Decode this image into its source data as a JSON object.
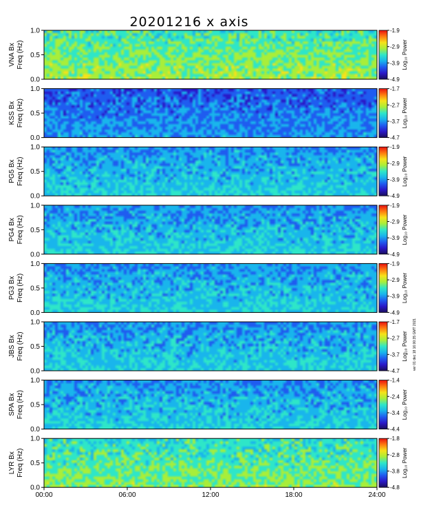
{
  "chart_data": {
    "type": "heatmap",
    "title": "20201216 x axis",
    "side_note": "ver 01 dec 18 16:00:35 GMT 2021",
    "x_ticks": [
      "00:00",
      "06:00",
      "12:00",
      "18:00",
      "24:00"
    ],
    "x_range_hours": [
      0,
      24
    ],
    "y_ticks": [
      "0.0",
      "0.5",
      "1.0"
    ],
    "y_range_hz": [
      0,
      1.0
    ],
    "colorbar_label": "Log₁₀ Power",
    "colormap": [
      "#1a0f5c",
      "#2a18c8",
      "#1f5cf0",
      "#19b5ec",
      "#2ee6c8",
      "#a8ee3a",
      "#f6e21a",
      "#ff7a10",
      "#e81010"
    ],
    "panels": [
      {
        "station": "VNA Bx",
        "ylabel_line1": "VNA Bx",
        "ylabel_line2": "Freq (Hz)",
        "cbar_ticks": [
          "-1.9",
          "-2.9",
          "-3.9",
          "-4.9"
        ],
        "cbar_range": [
          -4.9,
          -1.9
        ]
      },
      {
        "station": "KSS Bx",
        "ylabel_line1": "KSS Bx",
        "ylabel_line2": "Freq (Hz)",
        "cbar_ticks": [
          "-1.7",
          "-2.7",
          "-3.7",
          "-4.7"
        ],
        "cbar_range": [
          -4.7,
          -1.7
        ]
      },
      {
        "station": "PG5 Bx",
        "ylabel_line1": "PG5 Bx",
        "ylabel_line2": "Freq (Hz)",
        "cbar_ticks": [
          "-1.9",
          "-2.9",
          "-3.9",
          "-4.9"
        ],
        "cbar_range": [
          -4.9,
          -1.9
        ]
      },
      {
        "station": "PG4 Bx",
        "ylabel_line1": "PG4 Bx",
        "ylabel_line2": "Freq (Hz)",
        "cbar_ticks": [
          "-1.9",
          "-2.9",
          "-3.9",
          "-4.9"
        ],
        "cbar_range": [
          -4.9,
          -1.9
        ]
      },
      {
        "station": "PG3 Bx",
        "ylabel_line1": "PG3 Bx",
        "ylabel_line2": "Freq (Hz)",
        "cbar_ticks": [
          "-1.9",
          "-2.9",
          "-3.9",
          "-4.9"
        ],
        "cbar_range": [
          -4.9,
          -1.9
        ]
      },
      {
        "station": "JBS Bx",
        "ylabel_line1": "JBS Bx",
        "ylabel_line2": "Freq (Hz)",
        "cbar_ticks": [
          "-1.7",
          "-2.7",
          "-3.7",
          "-4.7"
        ],
        "cbar_range": [
          -4.7,
          -1.7
        ]
      },
      {
        "station": "SPA Bx",
        "ylabel_line1": "SPA Bx",
        "ylabel_line2": "Freq (Hz)",
        "cbar_ticks": [
          "-1.4",
          "-2.4",
          "-3.4",
          "-4.4"
        ],
        "cbar_range": [
          -4.4,
          -1.4
        ]
      },
      {
        "station": "LYR Bx",
        "ylabel_line1": "LYR Bx",
        "ylabel_line2": "Freq (Hz)",
        "cbar_ticks": [
          "-1.8",
          "-2.8",
          "-3.8",
          "-4.8"
        ],
        "cbar_range": [
          -4.8,
          -1.8
        ]
      }
    ]
  }
}
